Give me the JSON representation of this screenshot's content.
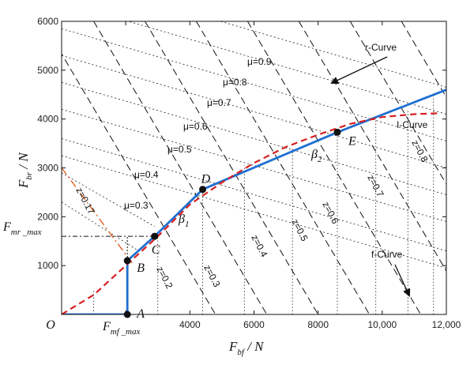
{
  "chart_data": {
    "type": "line",
    "x_axis": {
      "ticks": [
        0,
        2000,
        4000,
        6000,
        8000,
        10000,
        12000
      ],
      "tick_labels": [
        "O",
        "",
        "4000",
        "6000",
        "8000",
        "10,000",
        "12,000"
      ],
      "label_main": "F",
      "label_sub": "bf",
      "label_unit": " / N",
      "range": [
        0,
        12000
      ]
    },
    "y_axis": {
      "ticks": [
        1000,
        2000,
        3000,
        4000,
        5000,
        6000
      ],
      "tick_labels": [
        "1000",
        "2000",
        "3000",
        "4000",
        "5000",
        "6000"
      ],
      "label_main": "F",
      "label_sub": "br",
      "label_unit": " / N",
      "range": [
        0,
        6000
      ]
    },
    "series": [
      {
        "name": "f-Curve",
        "style": "solid-blue",
        "color": "#1f6fd1",
        "x": [
          0,
          2050,
          2050,
          2050,
          2900,
          4400,
          8600,
          12000
        ],
        "y": [
          0,
          0,
          0,
          1100,
          1600,
          2560,
          3730,
          4600
        ]
      },
      {
        "name": "I-Curve",
        "style": "dashed-red",
        "color": "#d62020",
        "x": [
          0,
          1000,
          2000,
          3000,
          4000,
          5000,
          6000,
          7000,
          8000,
          9000,
          10000,
          11000,
          11800
        ],
        "y": [
          0,
          400,
          1000,
          1600,
          2250,
          2700,
          3100,
          3430,
          3680,
          3900,
          4040,
          4100,
          4120
        ]
      }
    ],
    "mu_lines": {
      "labels": [
        "μ=0.3",
        "μ=0.4",
        "μ=0.5",
        "μ=0.6",
        "μ=0.7",
        "μ=0.8",
        "μ=0.9"
      ],
      "values": [
        0.3,
        0.4,
        0.5,
        0.6,
        0.7,
        0.8,
        0.9
      ]
    },
    "z_lines": {
      "labels": [
        "z=0.17",
        "z=0.2",
        "z=0.3",
        "z=0.4",
        "z=0.5",
        "z=0.6",
        "z=0.7",
        "z=0.8"
      ],
      "values": [
        0.17,
        0.2,
        0.3,
        0.4,
        0.5,
        0.6,
        0.7,
        0.8
      ]
    },
    "points": [
      {
        "label": "A",
        "x": 2050,
        "y": 0
      },
      {
        "label": "B",
        "x": 2050,
        "y": 1100
      },
      {
        "label": "C",
        "x": 2900,
        "y": 1600
      },
      {
        "label": "D",
        "x": 4400,
        "y": 2560
      },
      {
        "label": "E",
        "x": 8600,
        "y": 3730
      }
    ],
    "annotations": {
      "r_curve": "r-Curve",
      "i_curve": "I-Curve",
      "f_curve": "f-Curve",
      "beta1_main": "β",
      "beta1_sub": "1",
      "beta2_main": "β",
      "beta2_sub": "2",
      "fmr_main": "F",
      "fmr_sub": "mr _max",
      "fmf_main": "F",
      "fmf_sub": "mf _max",
      "fmr_value": 1600,
      "fmf_value": 2050
    }
  }
}
